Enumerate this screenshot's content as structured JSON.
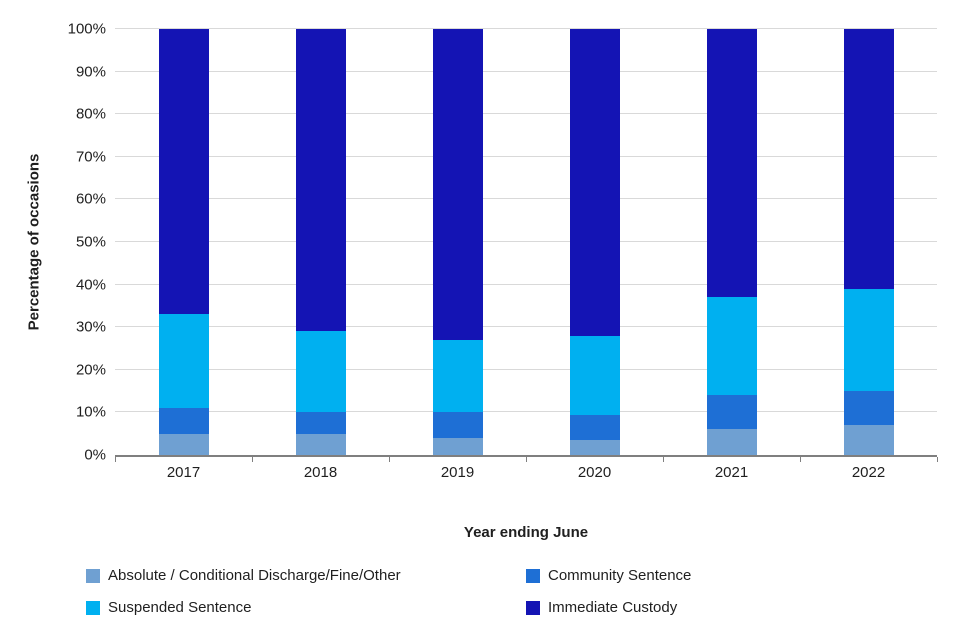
{
  "chart_data": {
    "type": "bar",
    "stacked": true,
    "percent_stacked": true,
    "title": "",
    "xlabel": "Year ending June",
    "ylabel": "Percentage of occasions",
    "ylim": [
      0,
      100
    ],
    "ytick_step": 10,
    "yticks": [
      "0%",
      "10%",
      "20%",
      "30%",
      "40%",
      "50%",
      "60%",
      "70%",
      "80%",
      "90%",
      "100%"
    ],
    "grid": true,
    "legend_position": "bottom",
    "categories": [
      "2017",
      "2018",
      "2019",
      "2020",
      "2021",
      "2022"
    ],
    "series": [
      {
        "name": "Absolute / Conditional Discharge/Fine/Other",
        "color": "#6FA0D2",
        "values": [
          5,
          5,
          4,
          3.5,
          6,
          7
        ]
      },
      {
        "name": "Community Sentence",
        "color": "#1E6FD5",
        "values": [
          6,
          5,
          6,
          6,
          8,
          8
        ]
      },
      {
        "name": "Suspended Sentence",
        "color": "#00B0F0",
        "values": [
          22,
          19,
          17,
          18.5,
          23,
          24
        ]
      },
      {
        "name": "Immediate Custody",
        "color": "#1414B4",
        "values": [
          67,
          71,
          73,
          72,
          63,
          61
        ]
      }
    ],
    "colors": {
      "gridline": "#d9d9d9",
      "axis": "#7f7f7f",
      "text": "#1f1f1f"
    }
  }
}
